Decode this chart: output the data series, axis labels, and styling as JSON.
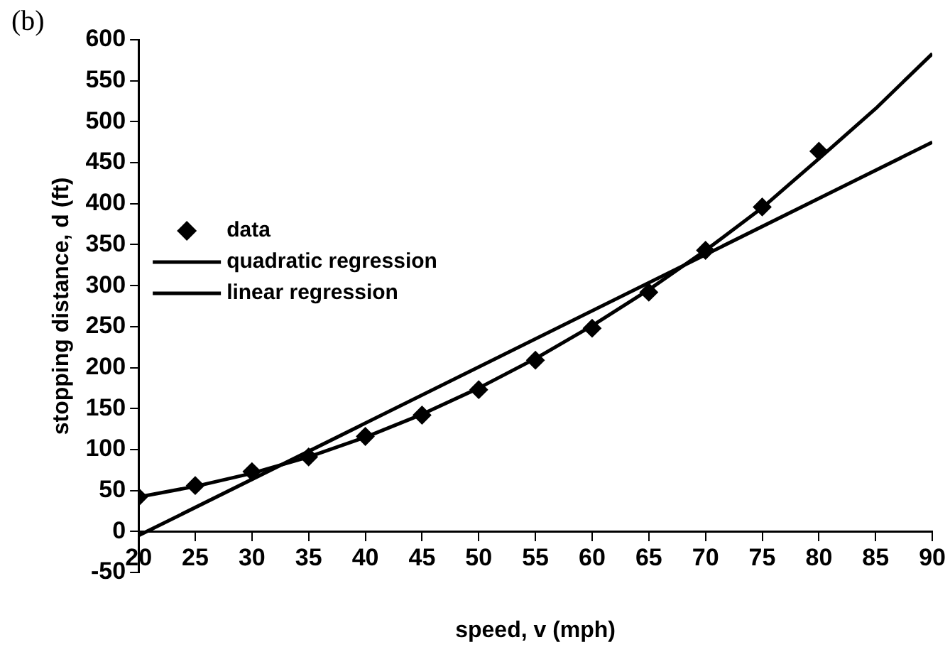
{
  "chart_data": {
    "type": "scatter",
    "xlabel": "speed, v (mph)",
    "ylabel": "stopping distance, d (ft)",
    "annotations": [
      "(b)"
    ],
    "xlim": [
      20,
      90
    ],
    "xticks": [
      20,
      25,
      30,
      35,
      40,
      45,
      50,
      55,
      60,
      65,
      70,
      75,
      80,
      85,
      90
    ],
    "ylim": [
      -50,
      600
    ],
    "yticks": [
      -50,
      0,
      50,
      100,
      150,
      200,
      250,
      300,
      350,
      400,
      450,
      500,
      550,
      600
    ],
    "grid": false,
    "legend": "left",
    "marker": "diamond",
    "series": [
      {
        "name": "data",
        "color": "#000000",
        "x": [
          20,
          25,
          30,
          35,
          40,
          45,
          50,
          55,
          60,
          65,
          70,
          75,
          80
        ],
        "values": [
          42,
          56,
          73,
          91,
          116,
          142,
          173,
          209,
          248,
          292,
          343,
          396,
          464
        ]
      },
      {
        "name": "quadratic regression",
        "type": "line",
        "color": "#000000",
        "marker": "none",
        "x": [
          20,
          25,
          30,
          35,
          40,
          45,
          50,
          55,
          60,
          65,
          70,
          75,
          80,
          85,
          90
        ],
        "values": [
          42,
          55,
          71,
          91,
          115,
          143,
          175,
          211,
          251,
          295,
          343,
          395,
          455,
          516,
          583
        ]
      },
      {
        "name": "linear regression",
        "type": "line",
        "color": "#000000",
        "marker": "none",
        "x": [
          20,
          90
        ],
        "values": [
          -5,
          475
        ]
      }
    ]
  }
}
